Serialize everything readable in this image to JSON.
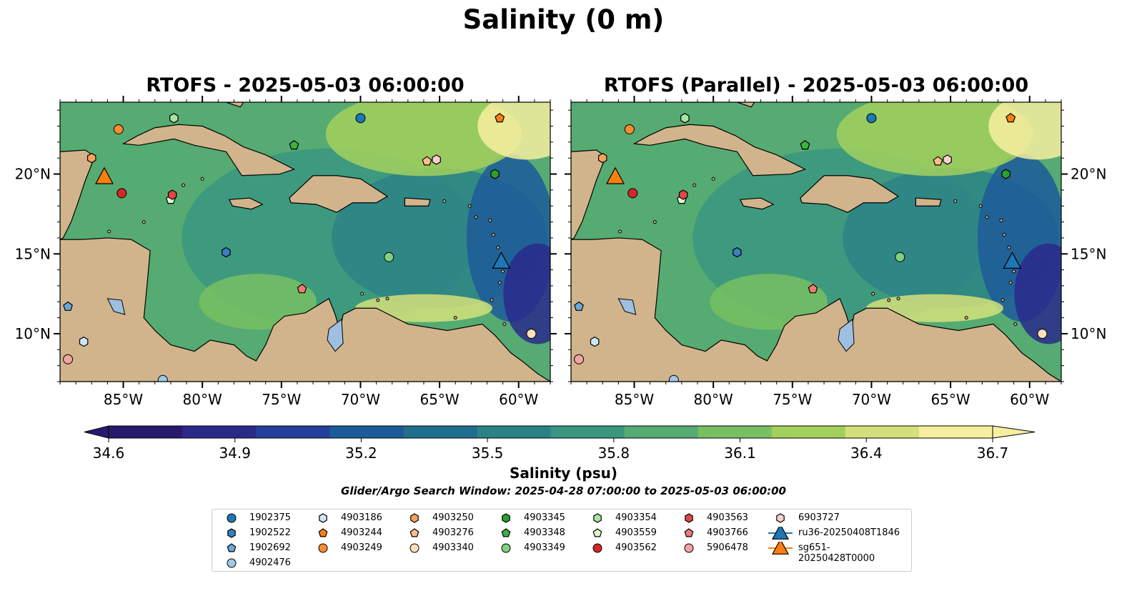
{
  "figure_title": "Salinity (0 m)",
  "colorbar_label": "Salinity (psu)",
  "search_window": "Glider/Argo Search Window: 2025-04-28 07:00:00 to 2025-05-03 06:00:00",
  "chart_data": [
    {
      "type": "heatmap",
      "title": "RTOFS - 2025-05-03 06:00:00",
      "lon_ticks": [
        "85°W",
        "80°W",
        "75°W",
        "70°W",
        "65°W",
        "60°W"
      ],
      "lat_ticks": [
        "10°N",
        "15°N",
        "20°N"
      ],
      "lon_range": [
        -89,
        -58
      ],
      "lat_range": [
        7,
        24.5
      ]
    },
    {
      "type": "heatmap",
      "title": "RTOFS (Parallel) - 2025-05-03 06:00:00",
      "lon_ticks": [
        "85°W",
        "80°W",
        "75°W",
        "70°W",
        "65°W",
        "60°W"
      ],
      "lat_ticks": [
        "10°N",
        "15°N",
        "20°N"
      ],
      "lon_range": [
        -89,
        -58
      ],
      "lat_range": [
        7,
        24.5
      ]
    }
  ],
  "colorbar": {
    "min": 34.6,
    "max": 36.7,
    "extend": "both",
    "ticks": [
      "34.6",
      "34.9",
      "35.2",
      "35.5",
      "35.8",
      "36.1",
      "36.4",
      "36.7"
    ],
    "colormap": [
      "#271a6c",
      "#2a2a8c",
      "#23409a",
      "#1d5a9a",
      "#1f6e8e",
      "#2b8286",
      "#3a9680",
      "#55ab72",
      "#77bf62",
      "#a3d05d",
      "#d3e07a",
      "#f7eea0"
    ]
  },
  "map_colors": {
    "land": "#d2b48c",
    "lakes": "#9fbfe0",
    "rivers": "#9fb6cf"
  },
  "platforms": [
    {
      "id": "1902375",
      "marker": "circle",
      "color": "#1f77b4",
      "lon": -70.0,
      "lat": 23.5
    },
    {
      "id": "1902522",
      "marker": "hexagon",
      "color": "#3a7fbf",
      "lon": -78.5,
      "lat": 15.1
    },
    {
      "id": "1902692",
      "marker": "pentagon",
      "color": "#6aa7d8",
      "lon": -88.5,
      "lat": 11.7
    },
    {
      "id": "4902476",
      "marker": "circle",
      "color": "#9ecae9",
      "lon": -82.5,
      "lat": 7.1
    },
    {
      "id": "4903186",
      "marker": "hexagon",
      "color": "#cfe6f7",
      "lon": -87.5,
      "lat": 9.5
    },
    {
      "id": "4903244",
      "marker": "pentagon",
      "color": "#ff7f0e",
      "lon": -61.2,
      "lat": 23.5
    },
    {
      "id": "4903249",
      "marker": "circle",
      "color": "#ff8c2e",
      "lon": -85.3,
      "lat": 22.8
    },
    {
      "id": "4903250",
      "marker": "hexagon",
      "color": "#ffa15a",
      "lon": -87.0,
      "lat": 21.0
    },
    {
      "id": "4903276",
      "marker": "pentagon",
      "color": "#ffbf86",
      "lon": -65.8,
      "lat": 20.8
    },
    {
      "id": "4903340",
      "marker": "circle",
      "color": "#ffe0b8",
      "lon": -59.2,
      "lat": 10.0
    },
    {
      "id": "4903345",
      "marker": "hexagon",
      "color": "#2ca02c",
      "lon": -61.5,
      "lat": 20.0
    },
    {
      "id": "4903348",
      "marker": "pentagon",
      "color": "#40b040",
      "lon": -74.2,
      "lat": 21.8
    },
    {
      "id": "4903349",
      "marker": "circle",
      "color": "#7fd07f",
      "lon": -68.2,
      "lat": 14.8
    },
    {
      "id": "4903354",
      "marker": "hexagon",
      "color": "#a8e4a0",
      "lon": -81.8,
      "lat": 23.5
    },
    {
      "id": "4903559",
      "marker": "pentagon",
      "color": "#dff7d0",
      "lon": -82.0,
      "lat": 18.4
    },
    {
      "id": "4903562",
      "marker": "circle",
      "color": "#d62728",
      "lon": -85.1,
      "lat": 18.8
    },
    {
      "id": "4903563",
      "marker": "hexagon",
      "color": "#e04848",
      "lon": -81.9,
      "lat": 18.7
    },
    {
      "id": "4903766",
      "marker": "pentagon",
      "color": "#f07a7a",
      "lon": -73.7,
      "lat": 12.8
    },
    {
      "id": "5906478",
      "marker": "circle",
      "color": "#f4a3a3",
      "lon": -88.5,
      "lat": 8.4
    },
    {
      "id": "6903727",
      "marker": "hexagon",
      "color": "#fcd0d0",
      "lon": -65.2,
      "lat": 20.9
    },
    {
      "id": "ru36-20250408T1846",
      "marker": "triangle",
      "color": "#1f77b4",
      "lon": -61.1,
      "lat": 14.5
    },
    {
      "id": "sg651-20250428T0000",
      "marker": "triangle",
      "color": "#ff7f0e",
      "lon": -86.2,
      "lat": 19.8
    }
  ]
}
